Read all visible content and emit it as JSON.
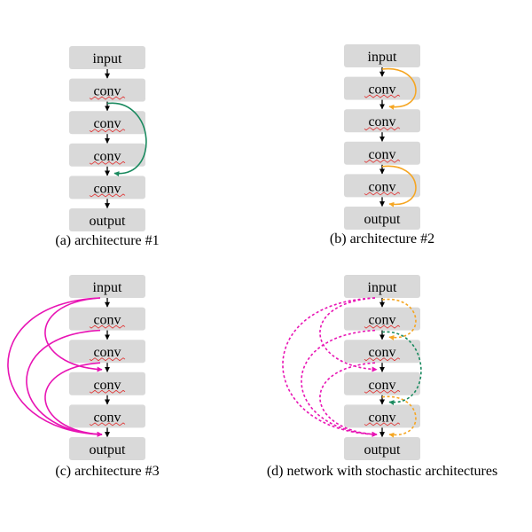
{
  "colors": {
    "box": "#d9d9d9",
    "green": "#1a8a5f",
    "orange": "#f5a623",
    "magenta": "#e814b4",
    "squiggle": "#e03030"
  },
  "panels": [
    {
      "id": "a",
      "caption": "(a) architecture #1",
      "nodes": [
        "input",
        "conv",
        "conv",
        "conv",
        "conv",
        "output"
      ],
      "skips": [
        {
          "from": 1,
          "to": 3,
          "color": "green",
          "side": "right",
          "style": "solid"
        }
      ]
    },
    {
      "id": "b",
      "caption": "(b) architecture #2",
      "nodes": [
        "input",
        "conv",
        "conv",
        "conv",
        "conv",
        "output"
      ],
      "skips": [
        {
          "from": 0,
          "to": 1,
          "color": "orange",
          "side": "right",
          "style": "solid"
        },
        {
          "from": 3,
          "to": 4,
          "color": "orange",
          "side": "right",
          "style": "solid"
        }
      ]
    },
    {
      "id": "c",
      "caption": "(c) architecture #3",
      "nodes": [
        "input",
        "conv",
        "conv",
        "conv",
        "conv",
        "output"
      ],
      "skips": [
        {
          "from": 0,
          "to": 2,
          "color": "magenta",
          "side": "left",
          "style": "solid"
        },
        {
          "from": 0,
          "to": 4,
          "color": "magenta",
          "side": "left",
          "style": "solid"
        },
        {
          "from": 2,
          "to": 4,
          "color": "magenta",
          "side": "left",
          "style": "solid"
        },
        {
          "from": 1,
          "to": 4,
          "color": "magenta",
          "side": "left",
          "style": "solid"
        }
      ]
    },
    {
      "id": "d",
      "caption": "(d) network with stochastic architectures",
      "nodes": [
        "input",
        "conv",
        "conv",
        "conv",
        "conv",
        "output"
      ],
      "skips": [
        {
          "from": 0,
          "to": 1,
          "color": "orange",
          "side": "right",
          "style": "dashed"
        },
        {
          "from": 3,
          "to": 4,
          "color": "orange",
          "side": "right",
          "style": "dashed"
        },
        {
          "from": 1,
          "to": 3,
          "color": "green",
          "side": "right",
          "style": "dashed"
        },
        {
          "from": 0,
          "to": 2,
          "color": "magenta",
          "side": "left",
          "style": "dashed"
        },
        {
          "from": 0,
          "to": 4,
          "color": "magenta",
          "side": "left",
          "style": "dashed"
        },
        {
          "from": 2,
          "to": 4,
          "color": "magenta",
          "side": "left",
          "style": "dashed"
        },
        {
          "from": 1,
          "to": 4,
          "color": "magenta",
          "side": "left",
          "style": "dashed"
        }
      ]
    }
  ]
}
